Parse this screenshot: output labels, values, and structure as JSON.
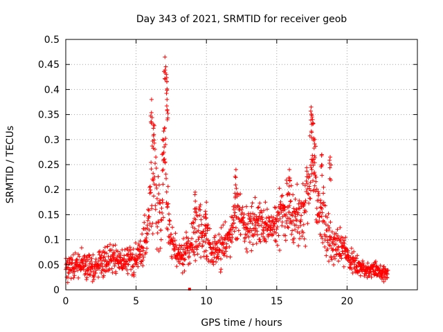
{
  "chart_data": {
    "type": "scatter",
    "title": "Day 343 of 2021, SRMTID for receiver geob",
    "xlabel": "GPS time / hours",
    "ylabel": "SRMTID / TECUs",
    "xlim": [
      0,
      25
    ],
    "ylim": [
      0,
      0.5
    ],
    "x_ticks": [
      0,
      5,
      10,
      15,
      20
    ],
    "x_tick_labels": [
      "0",
      "5",
      "10",
      "15",
      "20"
    ],
    "y_ticks": [
      0,
      0.05,
      0.1,
      0.15,
      0.2,
      0.25,
      0.3,
      0.35,
      0.4,
      0.45,
      0.5
    ],
    "y_tick_labels": [
      "0",
      "0.05",
      "0.1",
      "0.15",
      "0.2",
      "0.25",
      "0.3",
      "0.35",
      "0.4",
      "0.45",
      "0.5"
    ],
    "grid": true,
    "marker": "plus",
    "marker_color": "#ff0000",
    "time_range_hours": [
      0.0,
      22.9
    ],
    "series": [
      {
        "name": "SRMTID",
        "envelope_x": [
          0.0,
          0.5,
          1.0,
          1.5,
          2.0,
          2.5,
          3.0,
          3.5,
          4.0,
          4.5,
          5.0,
          5.5,
          5.8,
          6.0,
          6.2,
          6.5,
          6.8,
          7.0,
          7.2,
          7.5,
          8.0,
          8.5,
          9.0,
          9.5,
          10.0,
          10.5,
          11.0,
          11.5,
          12.0,
          12.3,
          12.6,
          13.0,
          13.5,
          14.0,
          14.5,
          15.0,
          15.5,
          16.0,
          16.5,
          17.0,
          17.3,
          17.5,
          17.8,
          18.0,
          18.5,
          19.0,
          19.5,
          20.0,
          20.5,
          21.0,
          21.5,
          22.0,
          22.5,
          22.9
        ],
        "envelope_y": [
          0.045,
          0.045,
          0.05,
          0.05,
          0.045,
          0.055,
          0.06,
          0.06,
          0.06,
          0.06,
          0.06,
          0.09,
          0.12,
          0.19,
          0.22,
          0.16,
          0.14,
          0.3,
          0.17,
          0.1,
          0.07,
          0.07,
          0.09,
          0.12,
          0.1,
          0.07,
          0.08,
          0.1,
          0.14,
          0.17,
          0.12,
          0.11,
          0.14,
          0.13,
          0.12,
          0.14,
          0.15,
          0.16,
          0.14,
          0.16,
          0.23,
          0.26,
          0.19,
          0.16,
          0.12,
          0.09,
          0.09,
          0.07,
          0.05,
          0.045,
          0.04,
          0.04,
          0.035,
          0.035
        ],
        "spread": [
          0.02,
          0.02,
          0.02,
          0.02,
          0.02,
          0.02,
          0.025,
          0.02,
          0.02,
          0.02,
          0.025,
          0.035,
          0.05,
          0.07,
          0.08,
          0.06,
          0.05,
          0.09,
          0.06,
          0.03,
          0.02,
          0.03,
          0.03,
          0.04,
          0.035,
          0.03,
          0.03,
          0.03,
          0.04,
          0.04,
          0.035,
          0.035,
          0.04,
          0.03,
          0.03,
          0.035,
          0.04,
          0.045,
          0.04,
          0.045,
          0.06,
          0.06,
          0.05,
          0.05,
          0.04,
          0.03,
          0.025,
          0.02,
          0.015,
          0.015,
          0.012,
          0.012,
          0.012,
          0.012
        ],
        "peaks": [
          {
            "x": 6.1,
            "y": 0.38
          },
          {
            "x": 6.25,
            "y": 0.33
          },
          {
            "x": 7.05,
            "y": 0.465
          },
          {
            "x": 7.15,
            "y": 0.43
          },
          {
            "x": 7.2,
            "y": 0.38
          },
          {
            "x": 6.9,
            "y": 0.3
          },
          {
            "x": 17.45,
            "y": 0.365
          },
          {
            "x": 17.55,
            "y": 0.34
          },
          {
            "x": 17.7,
            "y": 0.3
          },
          {
            "x": 18.2,
            "y": 0.27
          },
          {
            "x": 18.8,
            "y": 0.265
          },
          {
            "x": 12.1,
            "y": 0.24
          },
          {
            "x": 15.9,
            "y": 0.24
          },
          {
            "x": 9.2,
            "y": 0.195
          },
          {
            "x": 10.0,
            "y": 0.175
          }
        ],
        "outlier": {
          "x": 8.8,
          "y": 0.0
        }
      }
    ]
  }
}
